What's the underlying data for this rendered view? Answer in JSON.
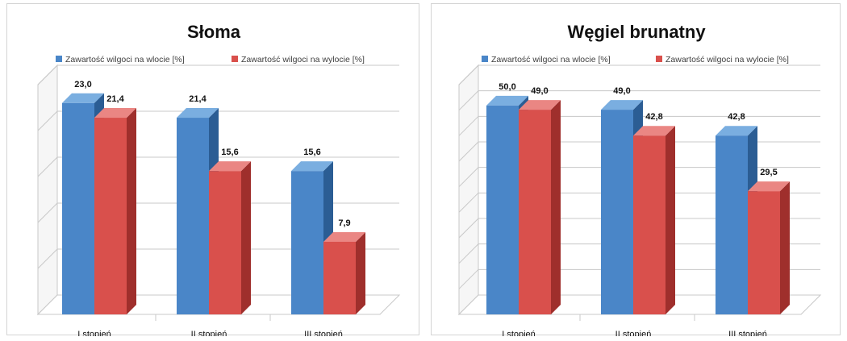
{
  "colors": {
    "series_front": [
      "#4a86c8",
      "#d9504c"
    ],
    "series_top": [
      "#7aaee0",
      "#ea8683"
    ],
    "series_side": [
      "#2b5d94",
      "#9f2f2c"
    ],
    "grid": "#c8c8c8",
    "wall": "#f6f6f6"
  },
  "chart_data": [
    {
      "type": "bar",
      "title": "Słoma",
      "categories": [
        "I stopień",
        "II stopień",
        "III stopień"
      ],
      "series": [
        {
          "name": "Zawartość wilgoci na wlocie [%]",
          "values": [
            23.0,
            21.4,
            15.6
          ],
          "labels": [
            "23,0",
            "21,4",
            "15,6"
          ]
        },
        {
          "name": "Zawartość wilgoci na wylocie [%]",
          "values": [
            21.4,
            15.6,
            7.9
          ],
          "labels": [
            "21,4",
            "15,6",
            "7,9"
          ]
        }
      ],
      "ylim": [
        0,
        25
      ],
      "grid": true,
      "legend": "top"
    },
    {
      "type": "bar",
      "title": "Węgiel brunatny",
      "categories": [
        "I stopień",
        "II stopień",
        "III stopień"
      ],
      "series": [
        {
          "name": "Zawartość wilgoci na wlocie [%]",
          "values": [
            50.0,
            49.0,
            42.8
          ],
          "labels": [
            "50,0",
            "49,0",
            "42,8"
          ]
        },
        {
          "name": "Zawartość wilgoci na wylocie [%]",
          "values": [
            49.0,
            42.8,
            29.5
          ],
          "labels": [
            "49,0",
            "42,8",
            "29,5"
          ]
        }
      ],
      "ylim": [
        0,
        55
      ],
      "grid": true,
      "legend": "top"
    }
  ]
}
